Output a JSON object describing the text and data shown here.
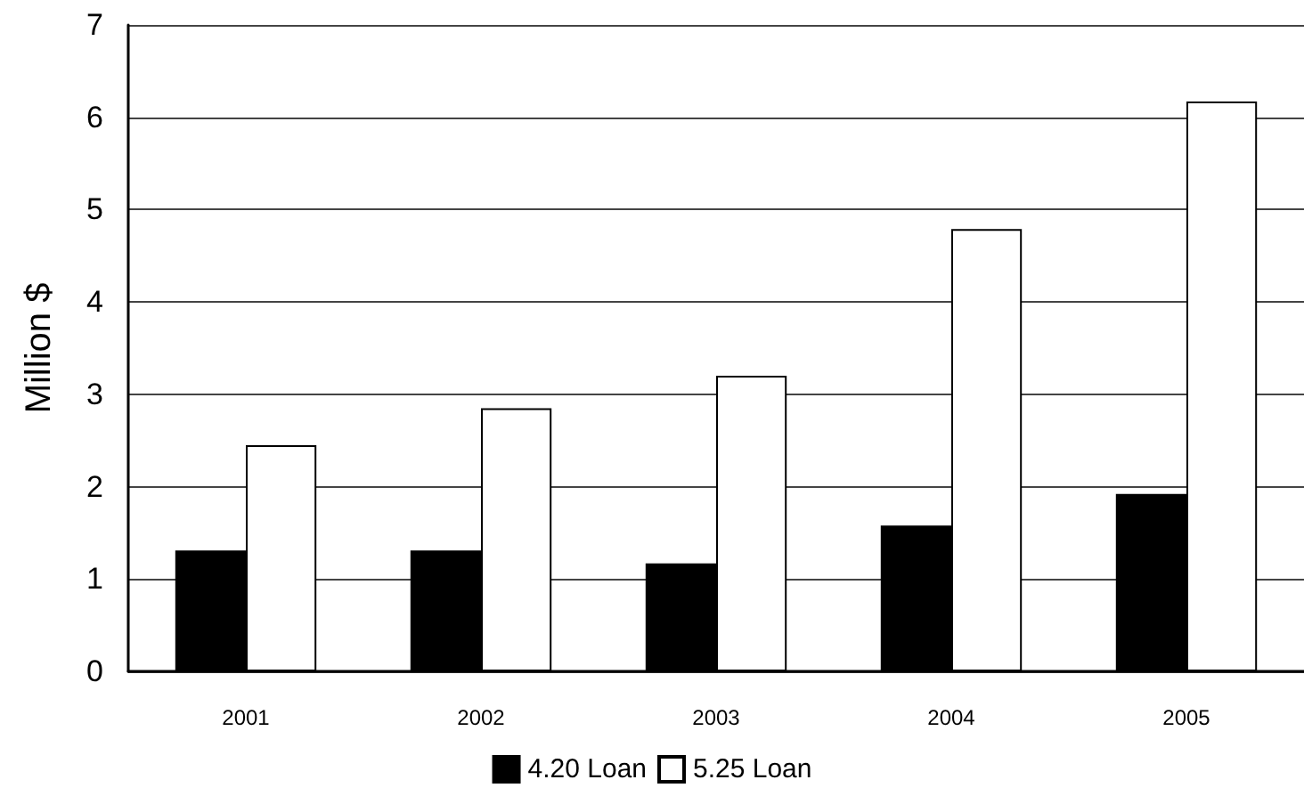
{
  "chart_data": {
    "type": "bar",
    "ylabel": "Million $",
    "categories": [
      "2001",
      "2002",
      "2003",
      "2004",
      "2005"
    ],
    "series": [
      {
        "name": "4.20 Loan",
        "color": "#000000",
        "values": [
          1.31,
          1.31,
          1.17,
          1.58,
          1.92
        ]
      },
      {
        "name": "5.25 Loan",
        "color": "#ffffff",
        "values": [
          2.45,
          2.85,
          3.2,
          4.79,
          6.17
        ]
      }
    ],
    "ylim": [
      0,
      7
    ],
    "yticks": [
      0,
      1,
      2,
      3,
      4,
      5,
      6,
      7
    ],
    "grid": "y",
    "legend": "bottom"
  }
}
